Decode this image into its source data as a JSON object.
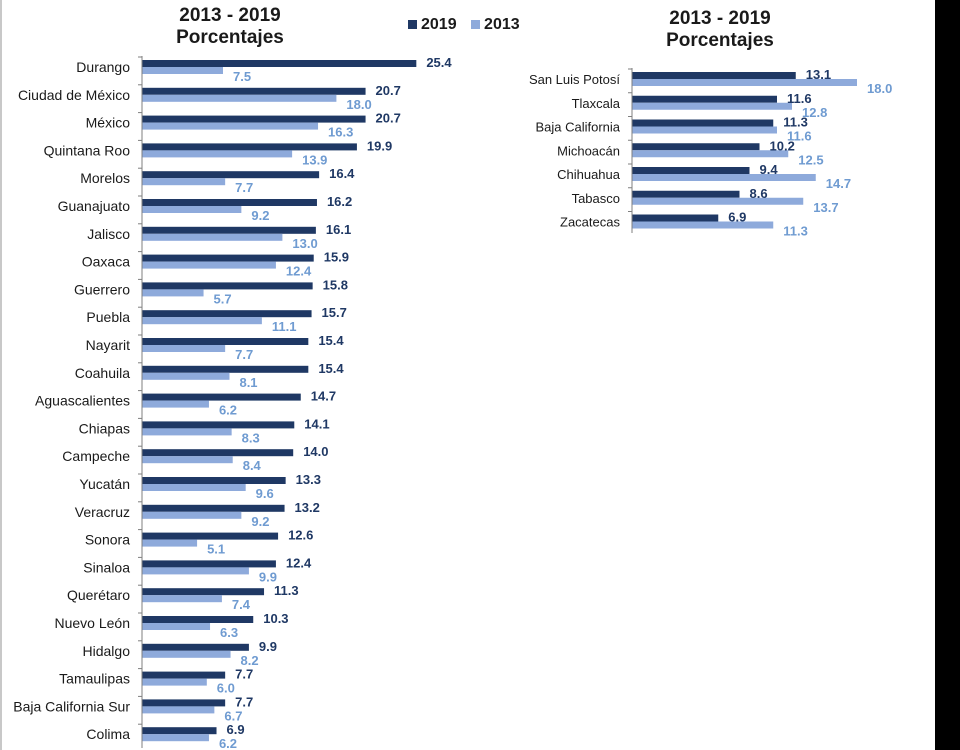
{
  "colors": {
    "y2019": "#1f3864",
    "y2013": "#8eaadb",
    "label2019": "#1f3864",
    "label2013": "#6f9bd1"
  },
  "left_title": {
    "line2": "2013 - 2019",
    "line3": "Porcentajes"
  },
  "right_title": {
    "line2": "2013 - 2019",
    "line3": "Porcentajes"
  },
  "legend": {
    "series_2019": "2019",
    "series_2013": "2013"
  },
  "chart_data": [
    {
      "type": "bar",
      "orientation": "horizontal",
      "title": "2013 - 2019 Porcentajes",
      "categories": [
        "Durango",
        "Ciudad de México",
        "México",
        "Quintana Roo",
        "Morelos",
        "Guanajuato",
        "Jalisco",
        "Oaxaca",
        "Guerrero",
        "Puebla",
        "Nayarit",
        "Coahuila",
        "Aguascalientes",
        "Chiapas",
        "Campeche",
        "Yucatán",
        "Veracruz",
        "Sonora",
        "Sinaloa",
        "Querétaro",
        "Nuevo León",
        "Hidalgo",
        "Tamaulipas",
        "Baja California Sur",
        "Colima"
      ],
      "series": [
        {
          "name": "2019",
          "values": [
            25.4,
            20.7,
            20.7,
            19.9,
            16.4,
            16.2,
            16.1,
            15.9,
            15.8,
            15.7,
            15.4,
            15.4,
            14.7,
            14.1,
            14.0,
            13.3,
            13.2,
            12.6,
            12.4,
            11.3,
            10.3,
            9.9,
            7.7,
            7.7,
            6.9
          ]
        },
        {
          "name": "2013",
          "values": [
            7.5,
            18.0,
            16.3,
            13.9,
            7.7,
            9.2,
            13.0,
            12.4,
            5.7,
            11.1,
            7.7,
            8.1,
            6.2,
            8.3,
            8.4,
            9.6,
            9.2,
            5.1,
            9.9,
            7.4,
            6.3,
            8.2,
            6.0,
            6.7,
            6.2
          ]
        }
      ],
      "legend": "top-right"
    },
    {
      "type": "bar",
      "orientation": "horizontal",
      "title": "2013 - 2019 Porcentajes",
      "categories": [
        "San Luis Potosí",
        "Tlaxcala",
        "Baja California",
        "Michoacán",
        "Chihuahua",
        "Tabasco",
        "Zacatecas"
      ],
      "series": [
        {
          "name": "2019",
          "values": [
            13.1,
            11.6,
            11.3,
            10.2,
            9.4,
            8.6,
            6.9
          ]
        },
        {
          "name": "2013",
          "values": [
            18.0,
            12.8,
            11.6,
            12.5,
            14.7,
            13.7,
            11.3
          ]
        }
      ]
    }
  ]
}
